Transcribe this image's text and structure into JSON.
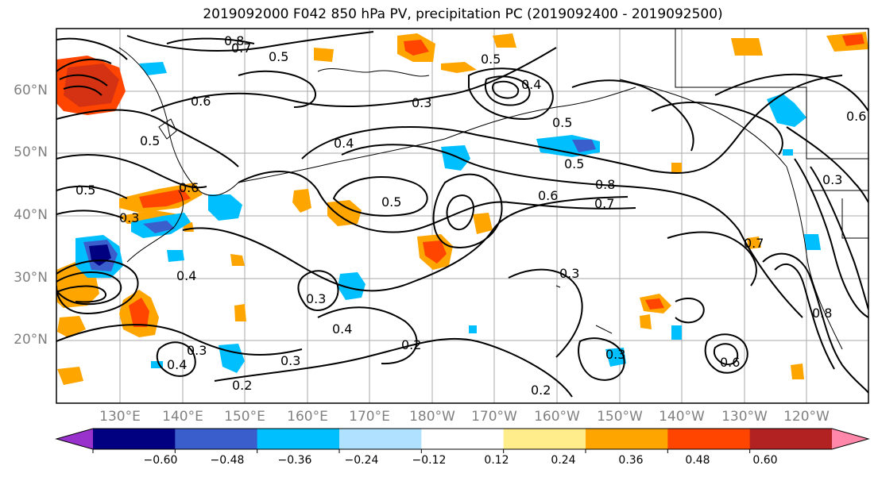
{
  "title": "2019092000 F042 850 hPa PV, precipitation PC (2019092400 - 2019092500)",
  "lat_labels": [
    "60°N",
    "50°N",
    "40°N",
    "30°N",
    "20°N"
  ],
  "lon_labels": [
    "130°E",
    "140°E",
    "150°E",
    "160°E",
    "170°E",
    "180°W",
    "170°W",
    "160°W",
    "150°W",
    "140°W",
    "130°W",
    "120°W"
  ],
  "colorbar": {
    "tick_labels": [
      "−0.60",
      "−0.48",
      "−0.36",
      "−0.24",
      "−0.12",
      "0.12",
      "0.24",
      "0.36",
      "0.48",
      "0.60"
    ],
    "colors": [
      "#9932cc",
      "#000080",
      "#3a5fcd",
      "#00bfff",
      "#b0e2ff",
      "#ffffff",
      "#ffec8b",
      "#ffa500",
      "#ff4500",
      "#b22222",
      "#ff88aa"
    ]
  },
  "contour_labels": [
    {
      "text": "0.8"
    },
    {
      "text": "0.5"
    },
    {
      "text": "0.7"
    },
    {
      "text": "0.6"
    },
    {
      "text": "0.3"
    },
    {
      "text": "0.5"
    },
    {
      "text": "0.4"
    },
    {
      "text": "0.4"
    },
    {
      "text": "0.3"
    },
    {
      "text": "0.5"
    },
    {
      "text": "0.5"
    },
    {
      "text": "0.6"
    },
    {
      "text": "0.7"
    },
    {
      "text": "0.8"
    },
    {
      "text": "0.3"
    },
    {
      "text": "0.3"
    },
    {
      "text": "0.4"
    },
    {
      "text": "0.4"
    },
    {
      "text": "0.3"
    },
    {
      "text": "0.2"
    },
    {
      "text": "0.2"
    },
    {
      "text": "0.2"
    },
    {
      "text": "0.3"
    },
    {
      "text": "0.8"
    },
    {
      "text": "0.7"
    },
    {
      "text": "0.6"
    },
    {
      "text": "0.3"
    },
    {
      "text": "0.5"
    },
    {
      "text": "0.4"
    },
    {
      "text": "0.6"
    },
    {
      "text": "0.5"
    },
    {
      "text": "0.6"
    },
    {
      "text": "0.3"
    },
    {
      "text": "0.5"
    }
  ]
}
